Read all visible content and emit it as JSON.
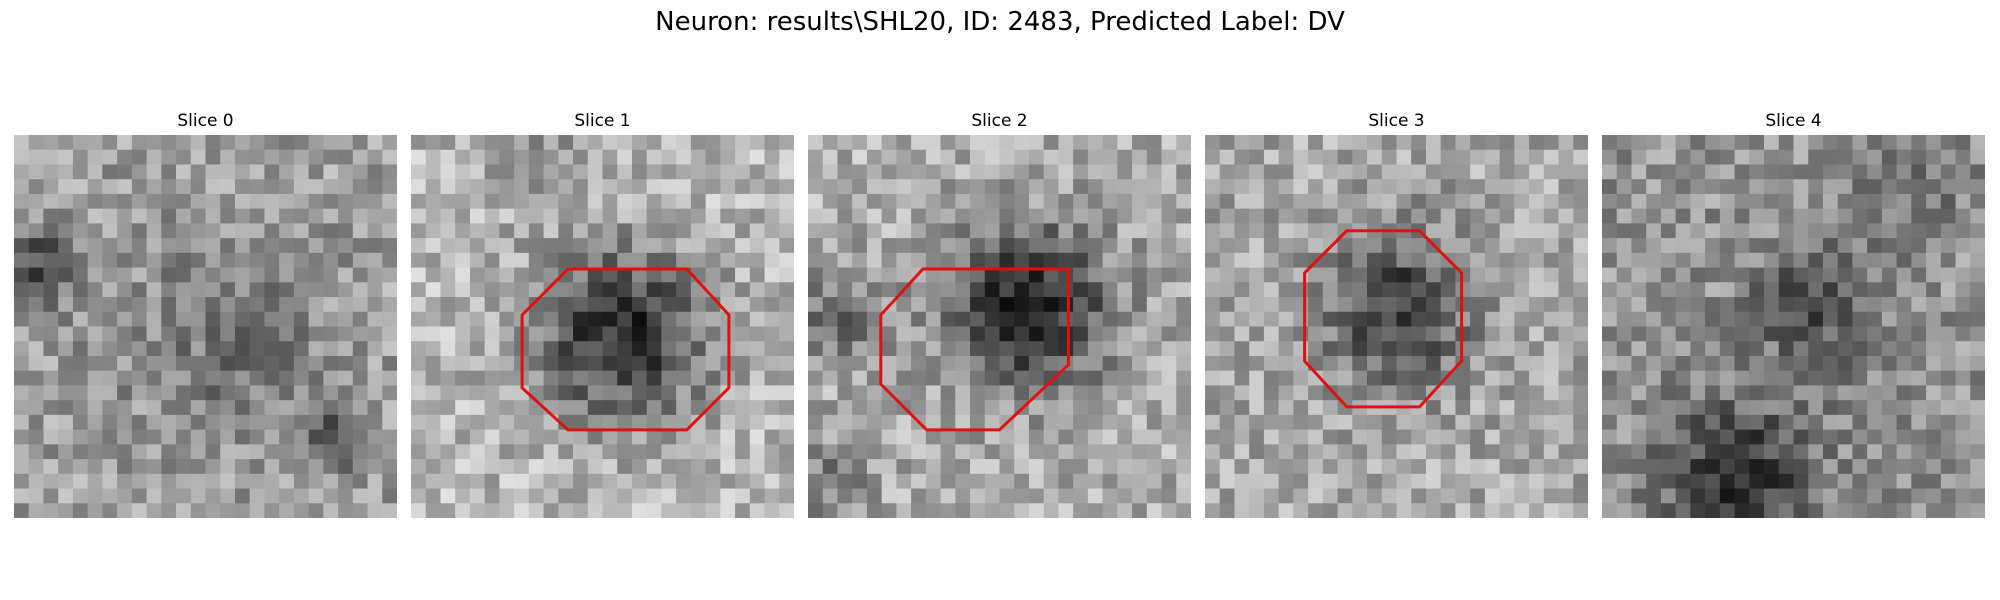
{
  "title": "Neuron: results\\SHL20, ID: 2483, Predicted Label: DV",
  "outline_color": "#e01010",
  "slices": [
    {
      "title": "Slice 0",
      "outline": null
    },
    {
      "title": "Slice 1",
      "outline": [
        [
          0.41,
          0.35
        ],
        [
          0.72,
          0.35
        ],
        [
          0.83,
          0.47
        ],
        [
          0.83,
          0.66
        ],
        [
          0.72,
          0.77
        ],
        [
          0.41,
          0.77
        ],
        [
          0.29,
          0.66
        ],
        [
          0.29,
          0.47
        ]
      ]
    },
    {
      "title": "Slice 2",
      "outline": [
        [
          0.3,
          0.35
        ],
        [
          0.68,
          0.35
        ],
        [
          0.68,
          0.6
        ],
        [
          0.5,
          0.77
        ],
        [
          0.31,
          0.77
        ],
        [
          0.19,
          0.65
        ],
        [
          0.19,
          0.47
        ]
      ]
    },
    {
      "title": "Slice 3",
      "outline": [
        [
          0.37,
          0.25
        ],
        [
          0.56,
          0.25
        ],
        [
          0.67,
          0.36
        ],
        [
          0.67,
          0.59
        ],
        [
          0.56,
          0.71
        ],
        [
          0.37,
          0.71
        ],
        [
          0.26,
          0.59
        ],
        [
          0.26,
          0.36
        ]
      ]
    },
    {
      "title": "Slice 4",
      "outline": null
    }
  ]
}
